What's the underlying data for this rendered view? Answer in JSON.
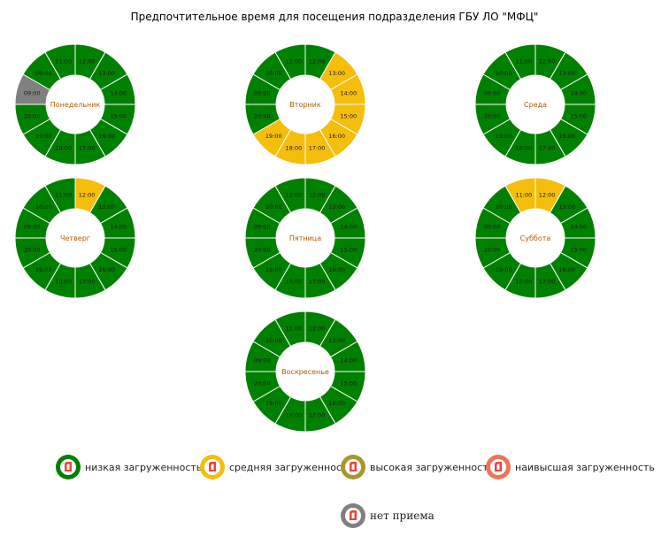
{
  "title": "Предпочтительное время для посещения подразделения ГБУ ЛО \"МФЦ\"",
  "colors": {
    "low": "#008000",
    "medium": "#f5be0c",
    "high": "#a8972c",
    "highest": "#ee7456",
    "closed": "#808080",
    "day_label": "#b35a00"
  },
  "chart_data": [
    {
      "type": "pie",
      "day": "Понедельник",
      "slots": [
        {
          "hour": "12:00",
          "load": "low"
        },
        {
          "hour": "13:00",
          "load": "low"
        },
        {
          "hour": "14:00",
          "load": "low"
        },
        {
          "hour": "15:00",
          "load": "low"
        },
        {
          "hour": "16:00",
          "load": "low"
        },
        {
          "hour": "17:00",
          "load": "low"
        },
        {
          "hour": "18:00",
          "load": "low"
        },
        {
          "hour": "19:00",
          "load": "low"
        },
        {
          "hour": "20:00",
          "load": "low"
        },
        {
          "hour": "09:00",
          "load": "closed"
        },
        {
          "hour": "09:00",
          "load": "low"
        },
        {
          "hour": "11:00",
          "load": "low"
        }
      ]
    },
    {
      "type": "pie",
      "day": "Вторник",
      "slots": [
        {
          "hour": "12:00",
          "load": "low"
        },
        {
          "hour": "13:00",
          "load": "medium"
        },
        {
          "hour": "14:00",
          "load": "medium"
        },
        {
          "hour": "15:00",
          "load": "medium"
        },
        {
          "hour": "16:00",
          "load": "medium"
        },
        {
          "hour": "17:00",
          "load": "medium"
        },
        {
          "hour": "18:00",
          "load": "medium"
        },
        {
          "hour": "19:00",
          "load": "medium"
        },
        {
          "hour": "20:00",
          "load": "low"
        },
        {
          "hour": "09:00",
          "load": "low"
        },
        {
          "hour": "10:00",
          "load": "low"
        },
        {
          "hour": "11:00",
          "load": "low"
        }
      ]
    },
    {
      "type": "pie",
      "day": "Среда",
      "slots": [
        {
          "hour": "12:00",
          "load": "low"
        },
        {
          "hour": "13:00",
          "load": "low"
        },
        {
          "hour": "14:00",
          "load": "low"
        },
        {
          "hour": "15:00",
          "load": "low"
        },
        {
          "hour": "16:00",
          "load": "low"
        },
        {
          "hour": "17:00",
          "load": "low"
        },
        {
          "hour": "18:00",
          "load": "low"
        },
        {
          "hour": "19:00",
          "load": "low"
        },
        {
          "hour": "20:00",
          "load": "low"
        },
        {
          "hour": "09:00",
          "load": "low"
        },
        {
          "hour": "10:00",
          "load": "low"
        },
        {
          "hour": "11:00",
          "load": "low"
        }
      ]
    },
    {
      "type": "pie",
      "day": "Четверг",
      "slots": [
        {
          "hour": "12:00",
          "load": "medium"
        },
        {
          "hour": "13:00",
          "load": "low"
        },
        {
          "hour": "14:00",
          "load": "low"
        },
        {
          "hour": "15:00",
          "load": "low"
        },
        {
          "hour": "16:00",
          "load": "low"
        },
        {
          "hour": "17:00",
          "load": "low"
        },
        {
          "hour": "18:00",
          "load": "low"
        },
        {
          "hour": "19:00",
          "load": "low"
        },
        {
          "hour": "20:00",
          "load": "low"
        },
        {
          "hour": "09:00",
          "load": "low"
        },
        {
          "hour": "10:00",
          "load": "low"
        },
        {
          "hour": "11:00",
          "load": "low"
        }
      ]
    },
    {
      "type": "pie",
      "day": "Пятница",
      "slots": [
        {
          "hour": "12:00",
          "load": "low"
        },
        {
          "hour": "13:00",
          "load": "low"
        },
        {
          "hour": "14:00",
          "load": "low"
        },
        {
          "hour": "15:00",
          "load": "low"
        },
        {
          "hour": "16:00",
          "load": "low"
        },
        {
          "hour": "17:00",
          "load": "low"
        },
        {
          "hour": "18:00",
          "load": "low"
        },
        {
          "hour": "19:00",
          "load": "low"
        },
        {
          "hour": "20:00",
          "load": "low"
        },
        {
          "hour": "09:00",
          "load": "low"
        },
        {
          "hour": "10:00",
          "load": "low"
        },
        {
          "hour": "11:00",
          "load": "low"
        }
      ]
    },
    {
      "type": "pie",
      "day": "Суббота",
      "slots": [
        {
          "hour": "12:00",
          "load": "medium"
        },
        {
          "hour": "13:00",
          "load": "low"
        },
        {
          "hour": "14:00",
          "load": "low"
        },
        {
          "hour": "15:00",
          "load": "low"
        },
        {
          "hour": "16:00",
          "load": "low"
        },
        {
          "hour": "17:00",
          "load": "low"
        },
        {
          "hour": "18:00",
          "load": "low"
        },
        {
          "hour": "19:00",
          "load": "low"
        },
        {
          "hour": "20:00",
          "load": "low"
        },
        {
          "hour": "09:00",
          "load": "low"
        },
        {
          "hour": "10:00",
          "load": "low"
        },
        {
          "hour": "11:00",
          "load": "medium"
        }
      ]
    },
    {
      "type": "pie",
      "day": "Воскресенье",
      "slots": [
        {
          "hour": "12:00",
          "load": "low"
        },
        {
          "hour": "13:00",
          "load": "low"
        },
        {
          "hour": "14:00",
          "load": "low"
        },
        {
          "hour": "15:00",
          "load": "low"
        },
        {
          "hour": "16:00",
          "load": "low"
        },
        {
          "hour": "17:00",
          "load": "low"
        },
        {
          "hour": "18:00",
          "load": "low"
        },
        {
          "hour": "19:00",
          "load": "low"
        },
        {
          "hour": "20:00",
          "load": "low"
        },
        {
          "hour": "09:00",
          "load": "low"
        },
        {
          "hour": "10:00",
          "load": "low"
        },
        {
          "hour": "11:00",
          "load": "low"
        }
      ]
    }
  ],
  "legend": [
    {
      "key": "low",
      "label": "низкая загруженность"
    },
    {
      "key": "medium",
      "label": "средняя загруженность"
    },
    {
      "key": "high",
      "label": "высокая загруженность"
    },
    {
      "key": "highest",
      "label": "наивысшая загруженность"
    },
    {
      "key": "closed",
      "label": "нет приема"
    }
  ]
}
